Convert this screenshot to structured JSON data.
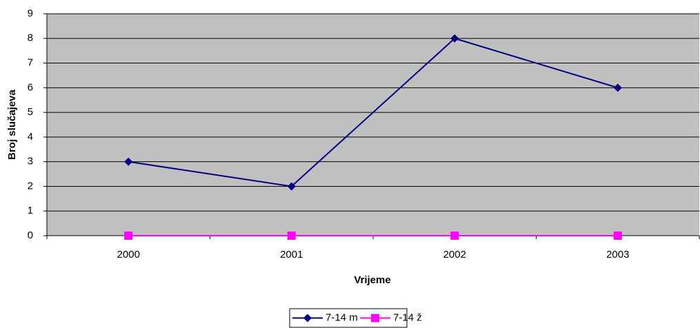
{
  "chart_data": {
    "type": "line",
    "x_label": "Vrijeme",
    "y_label": "Broj slučajeva",
    "categories": [
      "2000",
      "2001",
      "2002",
      "2003"
    ],
    "series": [
      {
        "name": "7-14 m",
        "color": "#000080",
        "marker": "diamond",
        "values": [
          3,
          2,
          8,
          6
        ]
      },
      {
        "name": "7-14 ž",
        "color": "#ff00ff",
        "marker": "square",
        "values": [
          0,
          0,
          0,
          0
        ]
      }
    ],
    "ylim": [
      0,
      9
    ],
    "yticks": [
      0,
      1,
      2,
      3,
      4,
      5,
      6,
      7,
      8,
      9
    ],
    "grid": true,
    "plot_background": "#c0c0c0",
    "legend": "bottom"
  }
}
